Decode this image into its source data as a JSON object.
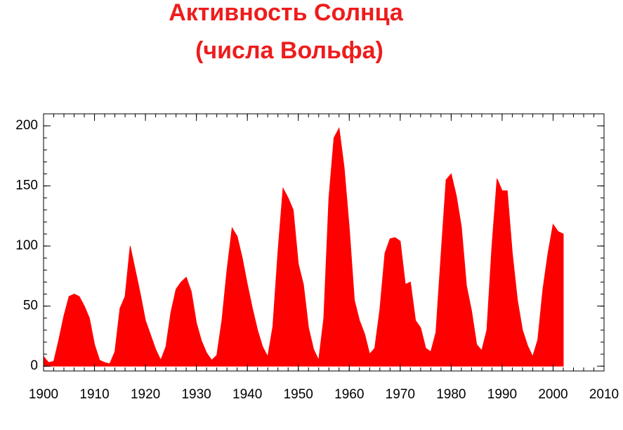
{
  "chart_data": {
    "type": "area",
    "title": "Активность Солнца",
    "subtitle": "(числа Вольфа)",
    "x": [
      1900,
      1901,
      1902,
      1903,
      1904,
      1905,
      1906,
      1907,
      1908,
      1909,
      1910,
      1911,
      1912,
      1913,
      1914,
      1915,
      1916,
      1917,
      1918,
      1919,
      1920,
      1921,
      1922,
      1923,
      1924,
      1925,
      1926,
      1927,
      1928,
      1929,
      1930,
      1931,
      1932,
      1933,
      1934,
      1935,
      1936,
      1937,
      1938,
      1939,
      1940,
      1941,
      1942,
      1943,
      1944,
      1945,
      1946,
      1947,
      1948,
      1949,
      1950,
      1951,
      1952,
      1953,
      1954,
      1955,
      1956,
      1957,
      1958,
      1959,
      1960,
      1961,
      1962,
      1963,
      1964,
      1965,
      1966,
      1967,
      1968,
      1969,
      1970,
      1971,
      1972,
      1973,
      1974,
      1975,
      1976,
      1977,
      1978,
      1979,
      1980,
      1981,
      1982,
      1983,
      1984,
      1985,
      1986,
      1987,
      1988,
      1989,
      1990,
      1991,
      1992,
      1993,
      1994,
      1995,
      1996,
      1997,
      1998,
      1999,
      2000,
      2001,
      2002
    ],
    "values": [
      8,
      3,
      4,
      22,
      42,
      58,
      60,
      58,
      50,
      40,
      18,
      5,
      3,
      2,
      12,
      48,
      58,
      100,
      80,
      60,
      38,
      26,
      14,
      5,
      16,
      45,
      64,
      70,
      74,
      62,
      36,
      21,
      11,
      5,
      9,
      38,
      80,
      115,
      108,
      90,
      68,
      48,
      30,
      16,
      8,
      33,
      95,
      148,
      140,
      130,
      85,
      68,
      32,
      14,
      5,
      40,
      140,
      190,
      198,
      165,
      115,
      55,
      38,
      27,
      10,
      15,
      47,
      94,
      106,
      107,
      104,
      68,
      70,
      38,
      32,
      15,
      12,
      28,
      92,
      155,
      160,
      142,
      116,
      67,
      46,
      18,
      13,
      30,
      100,
      156,
      146,
      146,
      94,
      55,
      30,
      17,
      8,
      22,
      64,
      94,
      118,
      112,
      110
    ],
    "color": "#ff0000",
    "xlim": [
      1900,
      2010
    ],
    "xticks": [
      1900,
      1910,
      1920,
      1930,
      1940,
      1950,
      1960,
      1970,
      1980,
      1990,
      2000,
      2010
    ],
    "ylim": [
      -4,
      210
    ],
    "yticks": [
      0,
      50,
      100,
      150,
      200
    ]
  }
}
